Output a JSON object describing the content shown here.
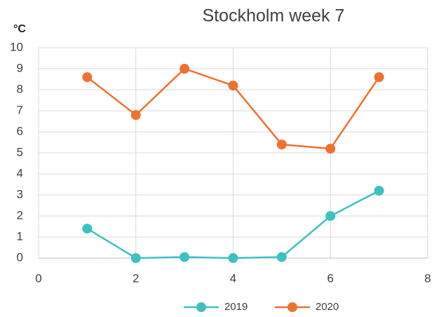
{
  "chart_data": {
    "type": "line",
    "title": "Stockholm week 7",
    "y_label": "°C",
    "x": [
      1,
      2,
      3,
      4,
      5,
      6,
      7
    ],
    "series": [
      {
        "name": "2019",
        "color": "#3fc1c1",
        "values": [
          1.4,
          0,
          0.05,
          0,
          0.05,
          2,
          3.2
        ]
      },
      {
        "name": "2020",
        "color": "#f07030",
        "values": [
          8.6,
          6.8,
          9,
          8.2,
          5.4,
          5.2,
          8.6
        ]
      }
    ],
    "xlim": [
      0,
      8
    ],
    "xticks": [
      0,
      2,
      4,
      6,
      8
    ],
    "ylim": [
      0,
      10
    ],
    "yticks": [
      0,
      1,
      2,
      3,
      4,
      5,
      6,
      7,
      8,
      9,
      10
    ],
    "grid": true,
    "legend": "bottom"
  }
}
